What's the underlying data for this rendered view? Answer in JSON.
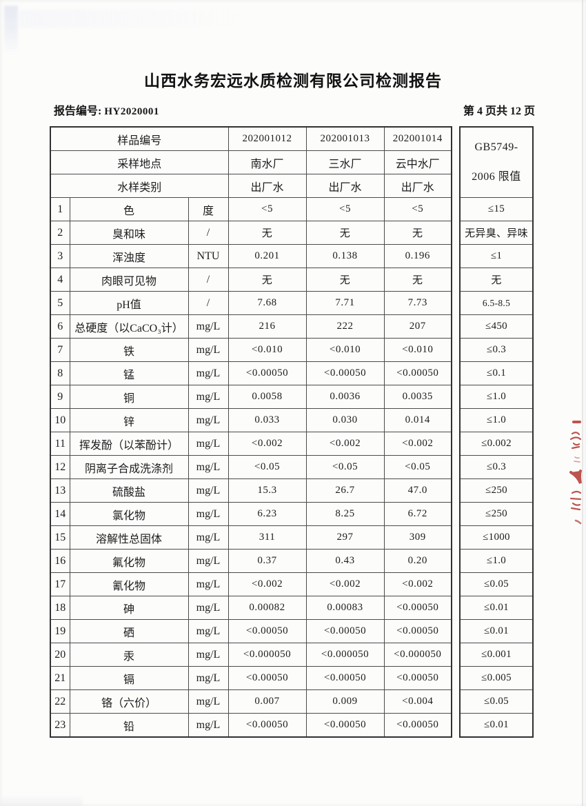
{
  "page": {
    "title": "山西水务宏远水质检测有限公司检测报告",
    "report_no_label": "报告编号:",
    "report_no": "HY2020001",
    "page_indicator": "第 4 页共 12 页"
  },
  "colors": {
    "stamp_red": "#b23830",
    "table_border": "#303030",
    "text": "#1a1a1a"
  },
  "table": {
    "header": {
      "sample_no_label": "样品编号",
      "sample_nos": [
        "202001012",
        "202001013",
        "202001014"
      ],
      "location_label": "采样地点",
      "locations": [
        "南水厂",
        "三水厂",
        "云中水厂"
      ],
      "type_label": "水样类别",
      "types": [
        "出厂水",
        "出厂水",
        "出厂水"
      ],
      "limit_header_line1": "GB5749-",
      "limit_header_line2": "2006 限值"
    },
    "rows": [
      {
        "no": "1",
        "name": "色",
        "unit": "度",
        "v1": "<5",
        "v2": "<5",
        "v3": "<5",
        "limit": "≤15"
      },
      {
        "no": "2",
        "name": "臭和味",
        "unit": "/",
        "v1": "无",
        "v2": "无",
        "v3": "无",
        "limit": "无异臭、异味"
      },
      {
        "no": "3",
        "name": "浑浊度",
        "unit": "NTU",
        "v1": "0.201",
        "v2": "0.138",
        "v3": "0.196",
        "limit": "≤1"
      },
      {
        "no": "4",
        "name": "肉眼可见物",
        "unit": "/",
        "v1": "无",
        "v2": "无",
        "v3": "无",
        "limit": "无"
      },
      {
        "no": "5",
        "name": "pH值",
        "unit": "/",
        "v1": "7.68",
        "v2": "7.71",
        "v3": "7.73",
        "limit": "6.5-8.5"
      },
      {
        "no": "6",
        "name": "总硬度（以CaCO₃计）",
        "unit": "mg/L",
        "v1": "216",
        "v2": "222",
        "v3": "207",
        "limit": "≤450"
      },
      {
        "no": "7",
        "name": "铁",
        "unit": "mg/L",
        "v1": "<0.010",
        "v2": "<0.010",
        "v3": "<0.010",
        "limit": "≤0.3"
      },
      {
        "no": "8",
        "name": "锰",
        "unit": "mg/L",
        "v1": "<0.00050",
        "v2": "<0.00050",
        "v3": "<0.00050",
        "limit": "≤0.1"
      },
      {
        "no": "9",
        "name": "铜",
        "unit": "mg/L",
        "v1": "0.0058",
        "v2": "0.0036",
        "v3": "0.0035",
        "limit": "≤1.0"
      },
      {
        "no": "10",
        "name": "锌",
        "unit": "mg/L",
        "v1": "0.033",
        "v2": "0.030",
        "v3": "0.014",
        "limit": "≤1.0"
      },
      {
        "no": "11",
        "name": "挥发酚（以苯酚计）",
        "unit": "mg/L",
        "v1": "<0.002",
        "v2": "<0.002",
        "v3": "<0.002",
        "limit": "≤0.002"
      },
      {
        "no": "12",
        "name": "阴离子合成洗涤剂",
        "unit": "mg/L",
        "v1": "<0.05",
        "v2": "<0.05",
        "v3": "<0.05",
        "limit": "≤0.3"
      },
      {
        "no": "13",
        "name": "硫酸盐",
        "unit": "mg/L",
        "v1": "15.3",
        "v2": "26.7",
        "v3": "47.0",
        "limit": "≤250"
      },
      {
        "no": "14",
        "name": "氯化物",
        "unit": "mg/L",
        "v1": "6.23",
        "v2": "8.25",
        "v3": "6.72",
        "limit": "≤250"
      },
      {
        "no": "15",
        "name": "溶解性总固体",
        "unit": "mg/L",
        "v1": "311",
        "v2": "297",
        "v3": "309",
        "limit": "≤1000"
      },
      {
        "no": "16",
        "name": "氟化物",
        "unit": "mg/L",
        "v1": "0.37",
        "v2": "0.43",
        "v3": "0.20",
        "limit": "≤1.0"
      },
      {
        "no": "17",
        "name": "氰化物",
        "unit": "mg/L",
        "v1": "<0.002",
        "v2": "<0.002",
        "v3": "<0.002",
        "limit": "≤0.05"
      },
      {
        "no": "18",
        "name": "砷",
        "unit": "mg/L",
        "v1": "0.00082",
        "v2": "0.00083",
        "v3": "<0.00050",
        "limit": "≤0.01"
      },
      {
        "no": "19",
        "name": "硒",
        "unit": "mg/L",
        "v1": "<0.00050",
        "v2": "<0.00050",
        "v3": "<0.00050",
        "limit": "≤0.01"
      },
      {
        "no": "20",
        "name": "汞",
        "unit": "mg/L",
        "v1": "<0.000050",
        "v2": "<0.000050",
        "v3": "<0.000050",
        "limit": "≤0.001"
      },
      {
        "no": "21",
        "name": "镉",
        "unit": "mg/L",
        "v1": "<0.00050",
        "v2": "<0.00050",
        "v3": "<0.00050",
        "limit": "≤0.005"
      },
      {
        "no": "22",
        "name": "铬（六价）",
        "unit": "mg/L",
        "v1": "0.007",
        "v2": "0.009",
        "v3": "<0.004",
        "limit": "≤0.05"
      },
      {
        "no": "23",
        "name": "铅",
        "unit": "mg/L",
        "v1": "<0.00050",
        "v2": "<0.00050",
        "v3": "<0.00050",
        "limit": "≤0.01"
      }
    ]
  }
}
